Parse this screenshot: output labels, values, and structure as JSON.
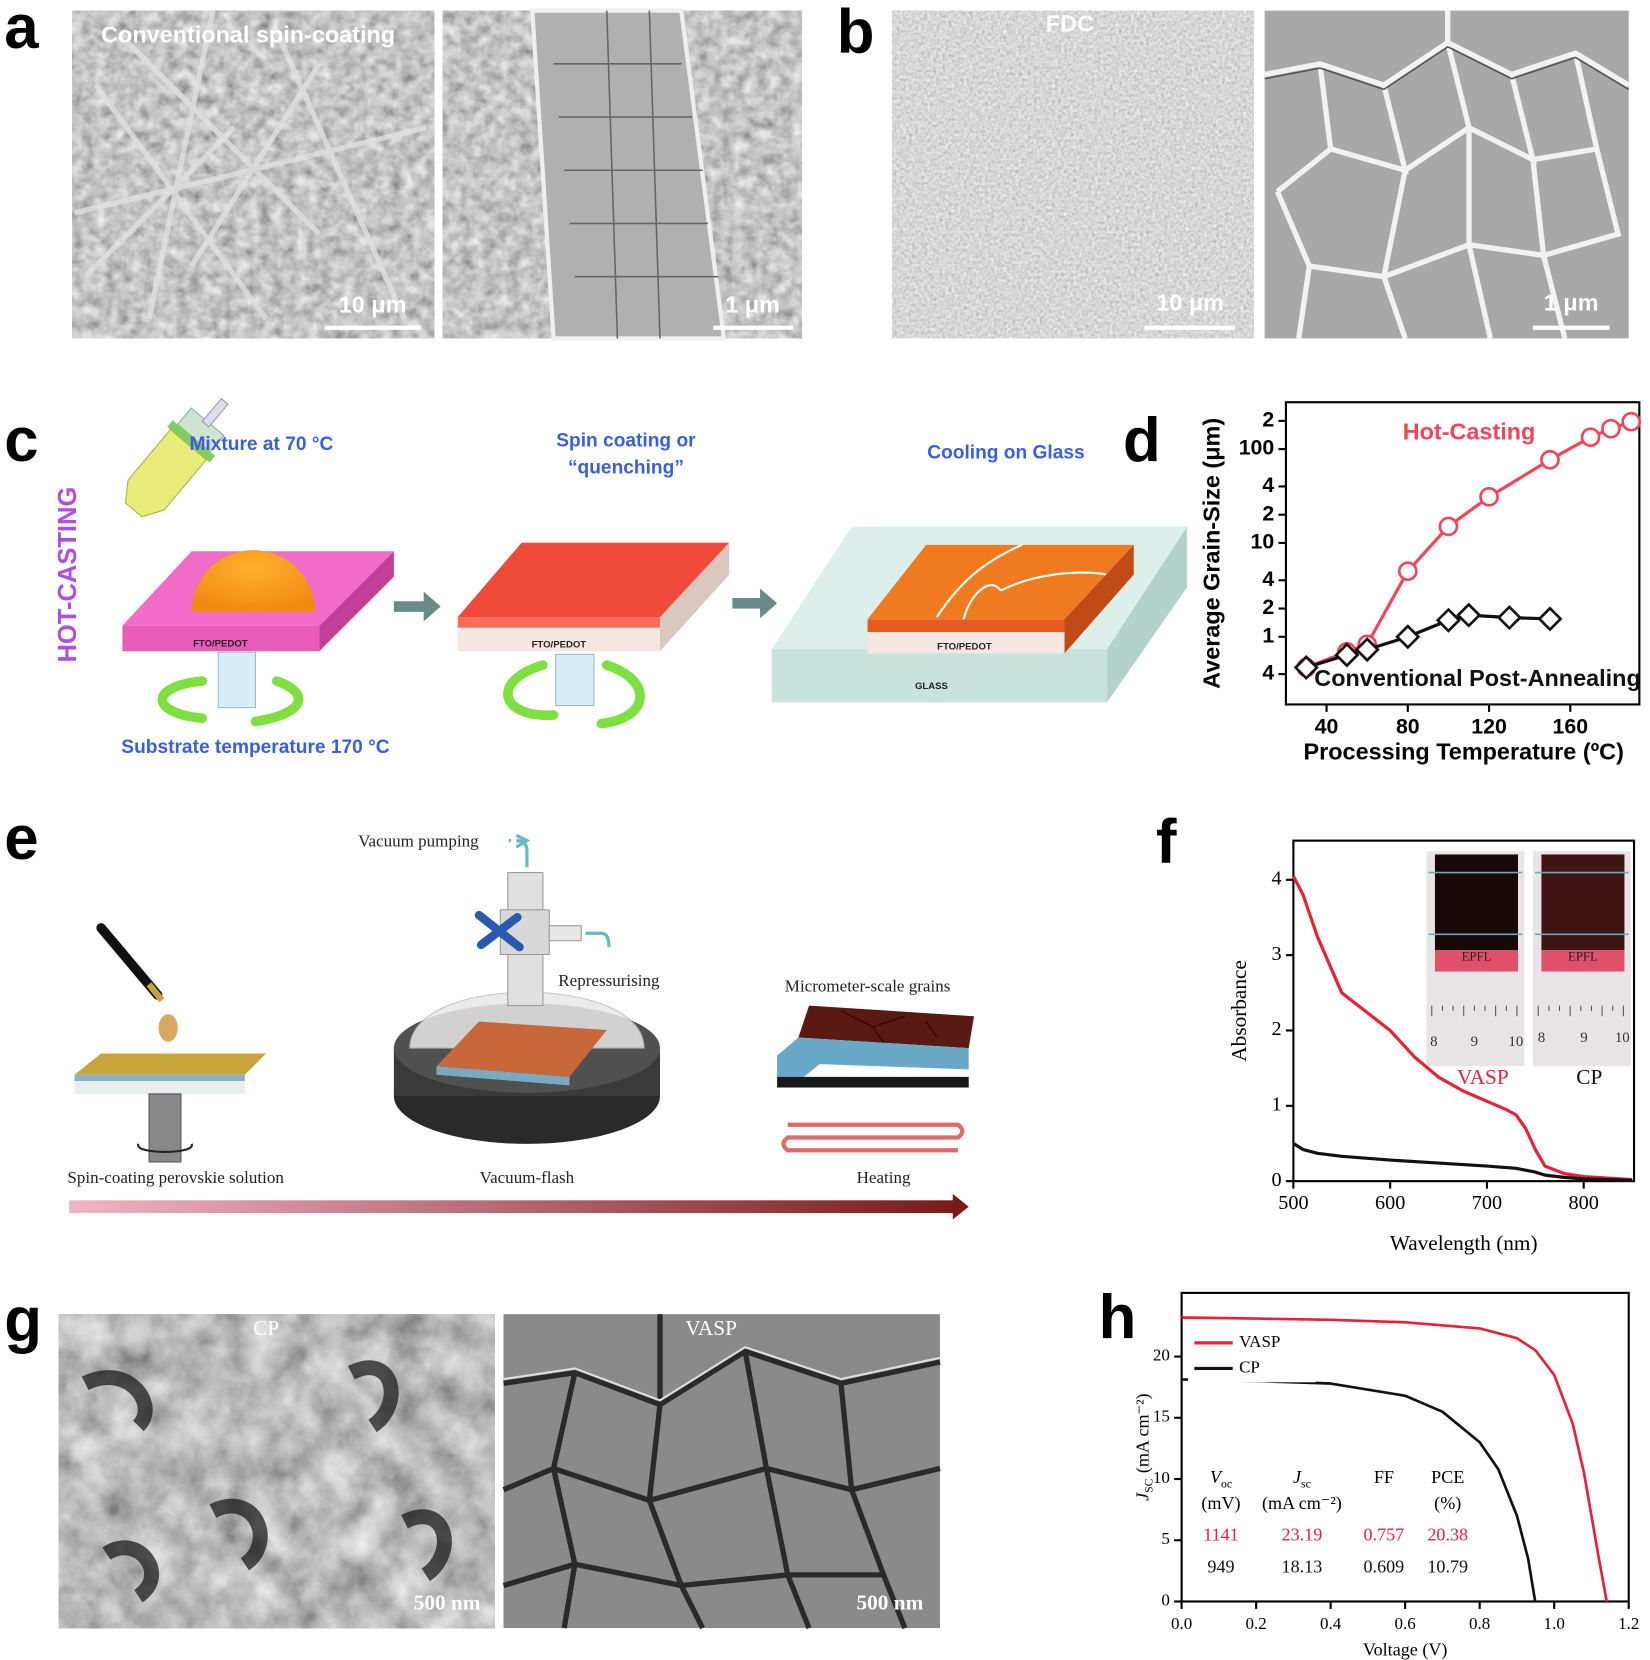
{
  "panel_labels": [
    "a",
    "b",
    "c",
    "d",
    "e",
    "f",
    "g",
    "h"
  ],
  "sem_a": {
    "caption": "Conventional spin-coating",
    "scale_bars": [
      "10 μm",
      "1 μm"
    ]
  },
  "sem_b": {
    "caption": "FDC",
    "scale_bars": [
      "10 μm",
      "1 μm"
    ]
  },
  "sem_g": {
    "captions": [
      "CP",
      "VASP"
    ],
    "scale_bars": [
      "500 nm",
      "500 nm"
    ]
  },
  "diagram_c": {
    "side_label": "HOT-CASTING",
    "steps": [
      [
        "Mixture at 70 °C"
      ],
      [
        "Spin coating or",
        "“quenching”"
      ],
      [
        "Cooling on Glass"
      ]
    ],
    "substrate_note": "Substrate temperature 170 °C",
    "layer_labels": [
      "FTO/PEDOT",
      "FTO/PEDOT",
      "FTO/PEDOT"
    ],
    "base_label": "GLASS"
  },
  "diagram_e": {
    "vacuum_pumping": "Vacuum pumping",
    "repressurising": "Repressurising",
    "grains": "Micrometer-scale grains",
    "step_spin": "Spin-coating perovskie solution",
    "step_flash": "Vacuum-flash",
    "step_heat": "Heating"
  },
  "chart_data": [
    {
      "type": "line",
      "yscale": "log",
      "xlabel": "Processing Temperature (ºC)",
      "ylabel": "Average Grain-Size (μm)",
      "xlim": [
        20,
        194
      ],
      "ylim": [
        0.19,
        316
      ],
      "xticks": [
        40,
        80,
        120,
        160
      ],
      "yticks": [
        {
          "value": 0.4,
          "label": "4"
        },
        1,
        2,
        4,
        10,
        {
          "value": 20,
          "label": "2"
        },
        {
          "value": 40,
          "label": "4"
        },
        100,
        {
          "value": 200,
          "label": "2"
        }
      ],
      "series": [
        {
          "name": "Hot-Casting",
          "color": "#f0455a",
          "marker": "circle",
          "x": [
            30,
            50,
            60,
            80,
            100,
            120,
            150,
            170,
            180,
            190
          ],
          "values": [
            0.47,
            0.69,
            0.83,
            5,
            15,
            31,
            77,
            134,
            165,
            196
          ]
        },
        {
          "name": "Conventional Post-Annealing",
          "color": "#111111",
          "marker": "diamond",
          "x": [
            30,
            50,
            60,
            80,
            100,
            110,
            130,
            150
          ],
          "values": [
            0.47,
            0.64,
            0.73,
            1.0,
            1.5,
            1.7,
            1.6,
            1.55
          ]
        }
      ]
    },
    {
      "type": "line",
      "xlabel": "Wavelength (nm)",
      "ylabel": "Absorbance",
      "xlim": [
        500,
        852
      ],
      "ylim": [
        0,
        4.52
      ],
      "xticks": [
        500,
        600,
        700,
        800
      ],
      "yticks": [
        0,
        1,
        2,
        3,
        4
      ],
      "series": [
        {
          "name": "VASP",
          "color": "#e8203a",
          "x": [
            500,
            510,
            525,
            550,
            575,
            600,
            625,
            650,
            675,
            700,
            720,
            730,
            740,
            750,
            760,
            780,
            800,
            825,
            850
          ],
          "values": [
            4.05,
            3.8,
            3.24,
            2.5,
            2.25,
            2.0,
            1.65,
            1.38,
            1.2,
            1.06,
            0.95,
            0.88,
            0.7,
            0.42,
            0.2,
            0.1,
            0.06,
            0.04,
            0.02
          ]
        },
        {
          "name": "CP",
          "color": "#111111",
          "x": [
            500,
            510,
            525,
            550,
            600,
            650,
            700,
            730,
            750,
            760,
            780,
            800,
            850
          ],
          "values": [
            0.5,
            0.42,
            0.37,
            0.33,
            0.28,
            0.24,
            0.2,
            0.17,
            0.12,
            0.08,
            0.05,
            0.03,
            0.01
          ]
        }
      ],
      "inset": {
        "photo_text": "EPFL",
        "ruler": [
          "8",
          "9",
          "10"
        ]
      }
    },
    {
      "type": "line",
      "xlabel": "Voltage (V)",
      "ylabel": {
        "symbol": "J",
        "sub": "SC",
        "unit": "(mA cm⁻²)"
      },
      "xlim": [
        0,
        1.2
      ],
      "ylim": [
        0,
        25.2
      ],
      "xticks": [
        {
          "value": 0,
          "label": "0.0"
        },
        0.2,
        0.4,
        0.6,
        0.8,
        {
          "value": 1,
          "label": "1.0"
        },
        1.2
      ],
      "yticks": [
        0,
        5,
        10,
        15,
        20
      ],
      "legend": "upper left",
      "series": [
        {
          "name": "VASP",
          "color": "#e8203a",
          "x": [
            0,
            0.2,
            0.4,
            0.6,
            0.8,
            0.9,
            0.95,
            1.0,
            1.05,
            1.08,
            1.1,
            1.12,
            1.141
          ],
          "values": [
            23.19,
            23.1,
            23.0,
            22.8,
            22.3,
            21.5,
            20.5,
            18.5,
            14.5,
            10.5,
            7,
            3.5,
            0
          ]
        },
        {
          "name": "CP",
          "color": "#111111",
          "x": [
            0,
            0.2,
            0.4,
            0.6,
            0.7,
            0.8,
            0.85,
            0.9,
            0.93,
            0.949
          ],
          "values": [
            18.13,
            18.0,
            17.8,
            16.8,
            15.5,
            13,
            10.8,
            7,
            3.5,
            0
          ]
        }
      ],
      "table": {
        "header": [
          {
            "symbol": "V",
            "sub": "oc",
            "unit": "(mV)"
          },
          {
            "symbol": "J",
            "sub": "sc",
            "unit": "(mA cm⁻²)"
          },
          {
            "symbol": "FF"
          },
          {
            "symbol": "PCE",
            "unit": "(%)"
          }
        ],
        "rows": [
          {
            "color": "#e8203a",
            "values": [
              1141,
              23.19,
              0.757,
              20.38
            ]
          },
          {
            "color": "#111111",
            "values": [
              949,
              18.13,
              0.609,
              10.79
            ]
          }
        ]
      }
    }
  ]
}
